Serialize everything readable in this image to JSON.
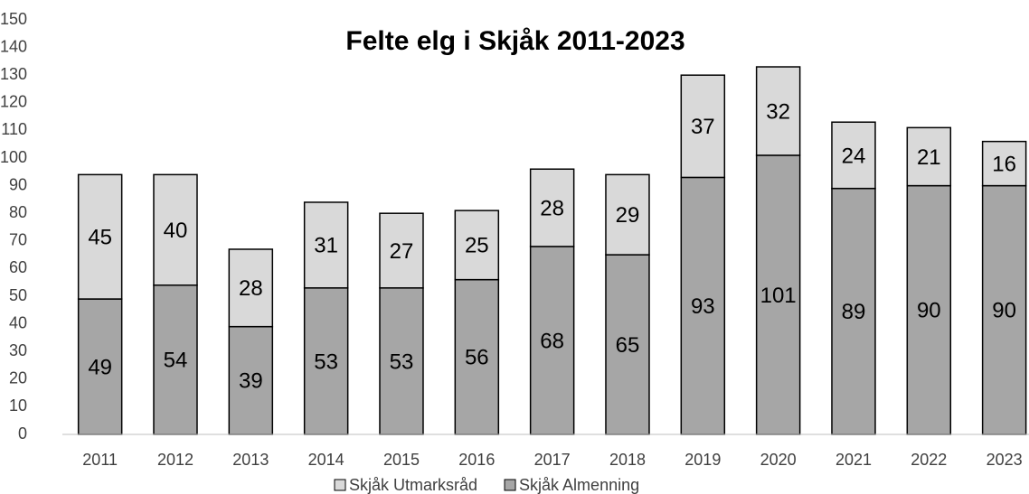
{
  "chart_data": {
    "type": "stacked_bar",
    "title": "Felte elg i Skjåk 2011-2023",
    "categories": [
      "2011",
      "2012",
      "2013",
      "2014",
      "2015",
      "2016",
      "2017",
      "2018",
      "2019",
      "2020",
      "2021",
      "2022",
      "2023"
    ],
    "series": [
      {
        "name": "Skjåk Utmarksråd",
        "color": "#d9d9d9",
        "values": [
          45,
          40,
          28,
          31,
          27,
          25,
          28,
          29,
          37,
          32,
          24,
          21,
          16
        ]
      },
      {
        "name": "Skjåk Almenning",
        "color": "#a6a6a6",
        "values": [
          49,
          54,
          39,
          53,
          53,
          56,
          68,
          65,
          93,
          101,
          89,
          90,
          90
        ]
      }
    ],
    "ylim": [
      0,
      150
    ],
    "yticks": [
      0,
      10,
      20,
      30,
      40,
      50,
      60,
      70,
      80,
      90,
      100,
      110,
      120,
      130,
      140,
      150
    ],
    "grid": false
  }
}
